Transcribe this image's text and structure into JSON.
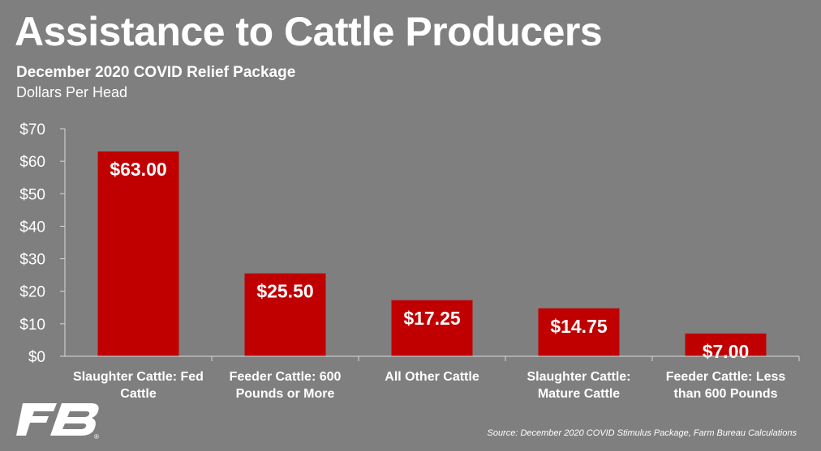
{
  "title": "Assistance to Cattle Producers",
  "subtitle": "December 2020 COVID Relief Package",
  "unit_label": "Dollars Per Head",
  "source": "Source: December 2020 COVID Stimulus Package, Farm Bureau Calculations",
  "logo_mark": "®",
  "colors": {
    "background": "#7f7f7f",
    "bar": "#c00000",
    "text": "#ffffff",
    "axis": "#d9d9d9"
  },
  "chart_data": {
    "type": "bar",
    "categories": [
      [
        "Slaughter Cattle: Fed",
        "Cattle"
      ],
      [
        "Feeder Cattle: 600",
        "Pounds or More"
      ],
      [
        "All Other Cattle"
      ],
      [
        "Slaughter Cattle:",
        "Mature Cattle"
      ],
      [
        "Feeder Cattle: Less",
        "than 600 Pounds"
      ]
    ],
    "values": [
      63.0,
      25.5,
      17.25,
      14.75,
      7.0
    ],
    "data_labels": [
      "$63.00",
      "$25.50",
      "$17.25",
      "$14.75",
      "$7.00"
    ],
    "ylim": [
      0,
      70
    ],
    "yticks": [
      0,
      10,
      20,
      30,
      40,
      50,
      60,
      70
    ],
    "ytick_labels": [
      "$0",
      "$10",
      "$20",
      "$30",
      "$40",
      "$50",
      "$60",
      "$70"
    ],
    "grid": false,
    "legend": "none"
  }
}
